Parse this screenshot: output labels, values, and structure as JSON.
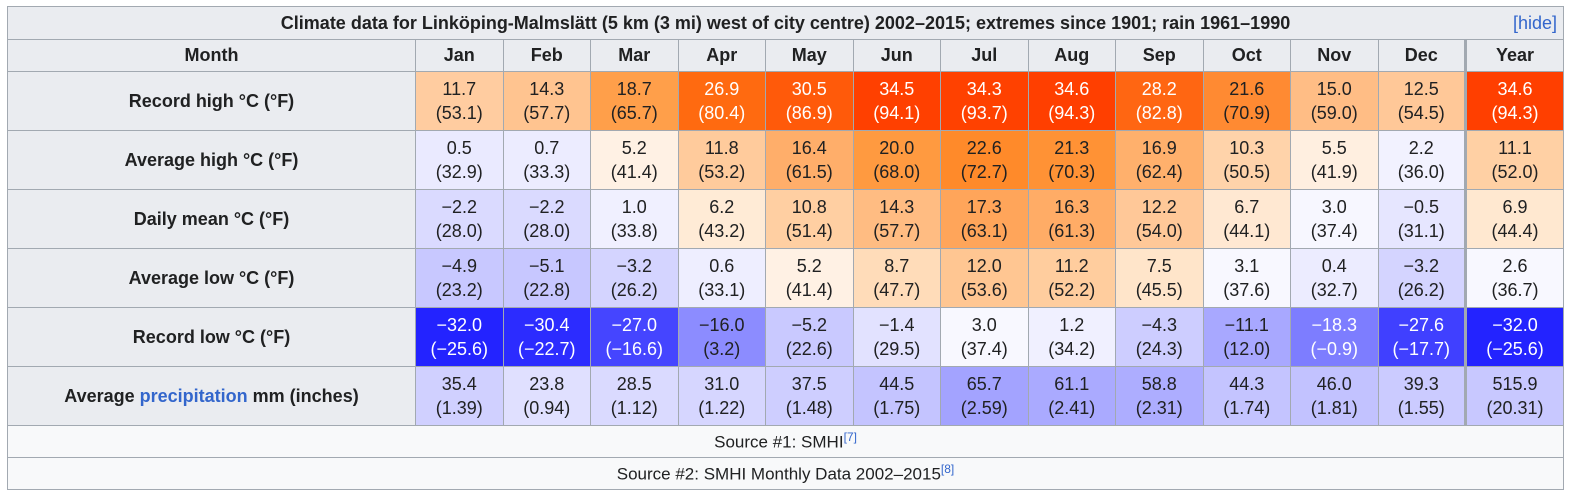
{
  "title": "Climate data for Linköping-Malmslätt (5 km (3 mi) west of city centre) 2002–2015; extremes since 1901; rain 1961–1990",
  "hide_link": "hide",
  "header": [
    "Month",
    "Jan",
    "Feb",
    "Mar",
    "Apr",
    "May",
    "Jun",
    "Jul",
    "Aug",
    "Sep",
    "Oct",
    "Nov",
    "Dec",
    "Year"
  ],
  "rows": [
    {
      "label": [
        "Record high °C (°F)"
      ],
      "cells": [
        [
          "11.7",
          "(53.1)"
        ],
        [
          "14.3",
          "(57.7)"
        ],
        [
          "18.7",
          "(65.7)"
        ],
        [
          "26.9",
          "(80.4)"
        ],
        [
          "30.5",
          "(86.9)"
        ],
        [
          "34.5",
          "(94.1)"
        ],
        [
          "34.3",
          "(93.7)"
        ],
        [
          "34.6",
          "(94.3)"
        ],
        [
          "28.2",
          "(82.8)"
        ],
        [
          "21.6",
          "(70.9)"
        ],
        [
          "15.0",
          "(59.0)"
        ],
        [
          "12.5",
          "(54.5)"
        ],
        [
          "34.6",
          "(94.3)"
        ]
      ],
      "colors": [
        "#ffcca0",
        "#ffc490",
        "#ff9f4a",
        "#ff6a10",
        "#ff5a0a",
        "#ff4000",
        "#ff4100",
        "#ff3f00",
        "#ff6612",
        "#ff8a32",
        "#ffbd85",
        "#ffc898",
        "#ff3f00"
      ]
    },
    {
      "label": [
        "Average high °C (°F)"
      ],
      "cells": [
        [
          "0.5",
          "(32.9)"
        ],
        [
          "0.7",
          "(33.3)"
        ],
        [
          "5.2",
          "(41.4)"
        ],
        [
          "11.8",
          "(53.2)"
        ],
        [
          "16.4",
          "(61.5)"
        ],
        [
          "20.0",
          "(68.0)"
        ],
        [
          "22.6",
          "(72.7)"
        ],
        [
          "21.3",
          "(70.3)"
        ],
        [
          "16.9",
          "(62.4)"
        ],
        [
          "10.3",
          "(50.5)"
        ],
        [
          "5.5",
          "(41.9)"
        ],
        [
          "2.2",
          "(36.0)"
        ],
        [
          "11.1",
          "(52.0)"
        ]
      ],
      "colors": [
        "#eaeaff",
        "#ececff",
        "#fff1e4",
        "#ffcb9c",
        "#ffae6a",
        "#ff9a40",
        "#ff8a2a",
        "#ff9235",
        "#ffb06c",
        "#ffd3aa",
        "#ffefe0",
        "#f2f2ff",
        "#ffd0a4"
      ]
    },
    {
      "label": [
        "Daily mean °C (°F)"
      ],
      "cells": [
        [
          "−2.2",
          "(28.0)"
        ],
        [
          "−2.2",
          "(28.0)"
        ],
        [
          "1.0",
          "(33.8)"
        ],
        [
          "6.2",
          "(43.2)"
        ],
        [
          "10.8",
          "(51.4)"
        ],
        [
          "14.3",
          "(57.7)"
        ],
        [
          "17.3",
          "(63.1)"
        ],
        [
          "16.3",
          "(61.3)"
        ],
        [
          "12.2",
          "(54.0)"
        ],
        [
          "6.7",
          "(44.1)"
        ],
        [
          "3.0",
          "(37.4)"
        ],
        [
          "−0.5",
          "(31.1)"
        ],
        [
          "6.9",
          "(44.4)"
        ]
      ],
      "colors": [
        "#dadaff",
        "#dadaff",
        "#f0f0ff",
        "#ffebd6",
        "#ffcfa2",
        "#ffbc82",
        "#ffa55a",
        "#ffac66",
        "#ffc898",
        "#ffe8d2",
        "#f7f7ff",
        "#e6e6ff",
        "#ffe8d0"
      ]
    },
    {
      "label": [
        "Average low °C (°F)"
      ],
      "cells": [
        [
          "−4.9",
          "(23.2)"
        ],
        [
          "−5.1",
          "(22.8)"
        ],
        [
          "−3.2",
          "(26.2)"
        ],
        [
          "0.6",
          "(33.1)"
        ],
        [
          "5.2",
          "(41.4)"
        ],
        [
          "8.7",
          "(47.7)"
        ],
        [
          "12.0",
          "(53.6)"
        ],
        [
          "11.2",
          "(52.2)"
        ],
        [
          "7.5",
          "(45.5)"
        ],
        [
          "3.1",
          "(37.6)"
        ],
        [
          "0.4",
          "(32.7)"
        ],
        [
          "−3.2",
          "(26.2)"
        ],
        [
          "2.6",
          "(36.7)"
        ]
      ],
      "colors": [
        "#c8c8ff",
        "#c7c7ff",
        "#d4d4ff",
        "#eeeeff",
        "#fff1e4",
        "#ffdcb9",
        "#ffc692",
        "#ffcd9e",
        "#ffe5ca",
        "#f8f8ff",
        "#ececff",
        "#d4d4ff",
        "#f8f8ff"
      ]
    },
    {
      "label": [
        "Record low °C (°F)"
      ],
      "cells": [
        [
          "−32.0",
          "(−25.6)"
        ],
        [
          "−30.4",
          "(−22.7)"
        ],
        [
          "−27.0",
          "(−16.6)"
        ],
        [
          "−16.0",
          "(3.2)"
        ],
        [
          "−5.2",
          "(22.6)"
        ],
        [
          "−1.4",
          "(29.5)"
        ],
        [
          "3.0",
          "(37.4)"
        ],
        [
          "1.2",
          "(34.2)"
        ],
        [
          "−4.3",
          "(24.3)"
        ],
        [
          "−11.1",
          "(12.0)"
        ],
        [
          "−18.3",
          "(−0.9)"
        ],
        [
          "−27.6",
          "(−17.7)"
        ],
        [
          "−32.0",
          "(−25.6)"
        ]
      ],
      "colors": [
        "#2323ff",
        "#2c2cff",
        "#4545ff",
        "#8c8cff",
        "#c9c9ff",
        "#e2e2ff",
        "#f8f8ff",
        "#f0f0ff",
        "#cdcdff",
        "#a8a8ff",
        "#7d7dff",
        "#4040ff",
        "#2323ff"
      ]
    },
    {
      "label": [
        "Average ",
        "precipitation",
        " mm (inches)"
      ],
      "cells": [
        [
          "35.4",
          "(1.39)"
        ],
        [
          "23.8",
          "(0.94)"
        ],
        [
          "28.5",
          "(1.12)"
        ],
        [
          "31.0",
          "(1.22)"
        ],
        [
          "37.5",
          "(1.48)"
        ],
        [
          "44.5",
          "(1.75)"
        ],
        [
          "65.7",
          "(2.59)"
        ],
        [
          "61.1",
          "(2.41)"
        ],
        [
          "58.8",
          "(2.31)"
        ],
        [
          "44.3",
          "(1.74)"
        ],
        [
          "46.0",
          "(1.81)"
        ],
        [
          "39.3",
          "(1.55)"
        ],
        [
          "515.9",
          "(20.31)"
        ]
      ],
      "colors": [
        "#d0d0ff",
        "#e0e0ff",
        "#dadaff",
        "#d6d6ff",
        "#ceceff",
        "#c4c4ff",
        "#a3a3ff",
        "#aaaaff",
        "#adadff",
        "#c4c4ff",
        "#c2c2ff",
        "#cbcbff",
        "#c8c8ff"
      ]
    }
  ],
  "sources": [
    {
      "text": "Source #1: SMHI",
      "ref": "[7]"
    },
    {
      "text": "Source #2: SMHI Monthly Data 2002–2015",
      "ref": "[8]"
    }
  ]
}
